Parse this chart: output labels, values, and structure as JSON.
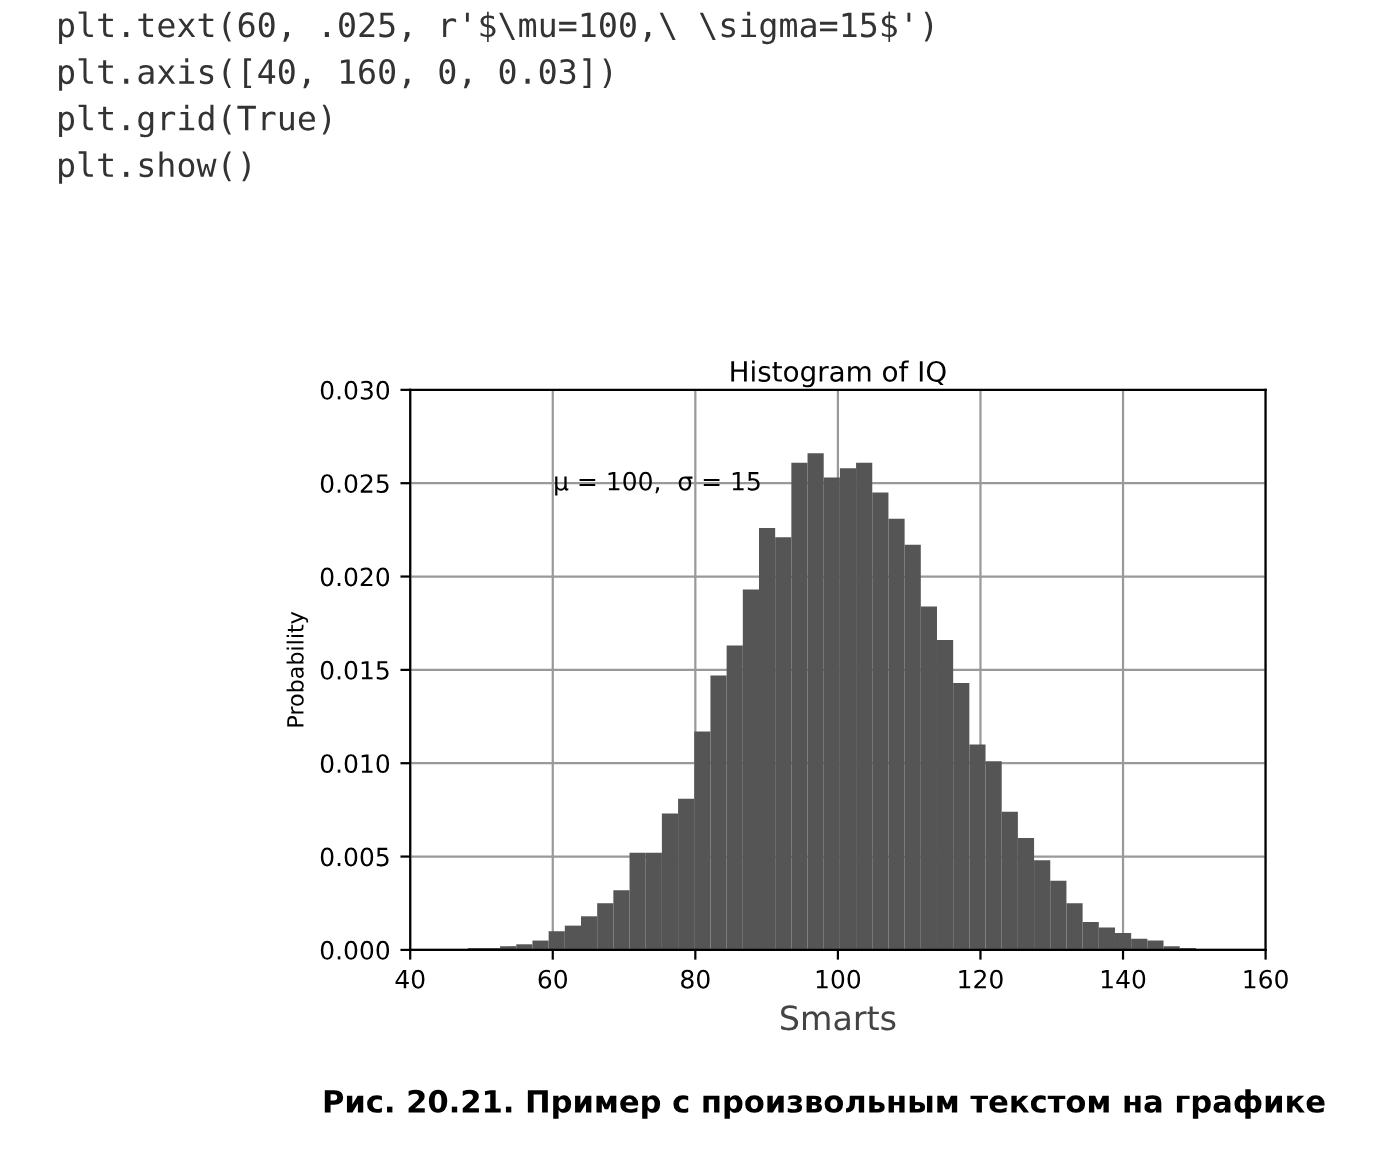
{
  "chart_data": {
    "type": "histogram",
    "title": "Histogram of IQ",
    "xlabel": "Smarts",
    "ylabel": "Probability",
    "bins": [
      48.07,
      50.34,
      52.61,
      54.88,
      57.15,
      59.42,
      61.69,
      63.96,
      66.23,
      68.5,
      70.77,
      73.04,
      75.31,
      77.58,
      79.85,
      82.12,
      84.39,
      86.66,
      88.93,
      91.2,
      93.47,
      95.74,
      98.01,
      100.28,
      102.55,
      104.82,
      107.09,
      109.36,
      111.63,
      113.9,
      116.17,
      118.44,
      120.71,
      122.98,
      125.25,
      127.52,
      129.79,
      132.06,
      134.33,
      136.6,
      138.87,
      141.14,
      143.41,
      145.68,
      147.95,
      150.22
    ],
    "values": [
      0.0001,
      0.0001,
      0.0002,
      0.0003,
      0.0005,
      0.001,
      0.0013,
      0.0018,
      0.0025,
      0.0032,
      0.0052,
      0.0052,
      0.0073,
      0.0081,
      0.0117,
      0.0147,
      0.0163,
      0.0193,
      0.0226,
      0.0221,
      0.0261,
      0.0266,
      0.0253,
      0.0258,
      0.0261,
      0.0245,
      0.0231,
      0.0217,
      0.0184,
      0.0166,
      0.0143,
      0.011,
      0.0101,
      0.0074,
      0.006,
      0.0048,
      0.0037,
      0.0025,
      0.0015,
      0.0012,
      0.0009,
      0.0006,
      0.0005,
      0.0002,
      0.0001
    ],
    "color": "#555555",
    "xlim": [
      40,
      160
    ],
    "xticks": [
      40,
      60,
      80,
      100,
      120,
      140,
      160
    ],
    "ylim": [
      0,
      0.03
    ],
    "yticks": [
      {
        "value": 0,
        "label": "0.000"
      },
      {
        "value": 0.005,
        "label": "0.005"
      },
      {
        "value": 0.01,
        "label": "0.010"
      },
      {
        "value": 0.015,
        "label": "0.015"
      },
      {
        "value": 0.02,
        "label": "0.020"
      },
      {
        "value": 0.025,
        "label": "0.025"
      },
      {
        "value": 0.03,
        "label": "0.030"
      }
    ],
    "grid": true,
    "annotations": [
      "plt.text(60, .025, r'$\\mu=100,\\ \\sigma=15$')\nplt.axis([40, 160, 0, 0.03])\nplt.grid(True)\nplt.show()",
      "Рис. 20.21. Пример с произвольным текстом на графике",
      "μ = 100,  σ = 15"
    ]
  }
}
